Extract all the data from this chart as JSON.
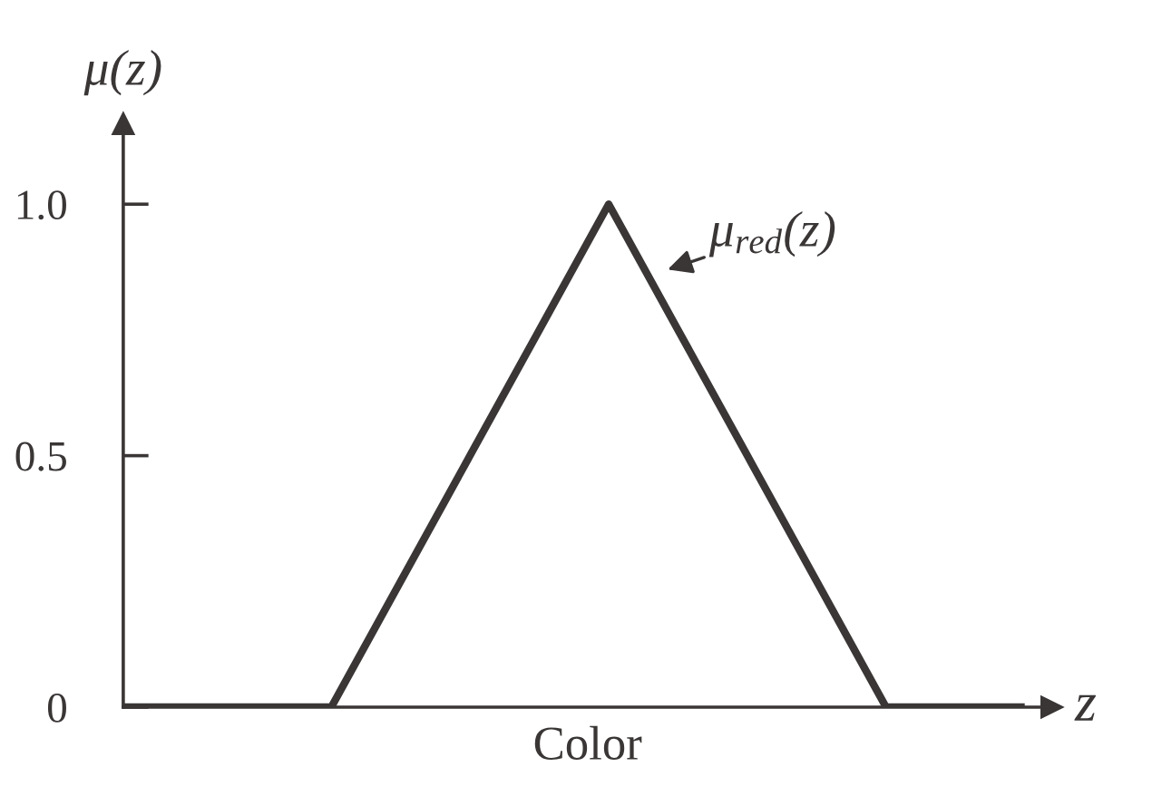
{
  "chart_data": {
    "type": "line",
    "ylabel": "μ(z)",
    "xlabel": "Color",
    "categories": [
      null,
      null,
      null,
      null,
      null,
      null,
      null,
      null,
      null,
      null,
      null,
      null,
      null,
      null
    ],
    "series": [
      {
        "color": "#3a3636",
        "values": [
          0,
          0,
          0,
          0,
          0.25,
          0.5,
          0.75,
          1,
          0.75,
          0.5,
          0.25,
          0,
          0,
          0
        ]
      }
    ],
    "ylim": [
      0,
      1.16
    ],
    "yticks": [
      0,
      0.5,
      {
        "value": 1,
        "label": "1.0"
      }
    ],
    "annotations": [
      "z",
      "μ$_{red}$(z)"
    ],
    "grid": false,
    "legend": false,
    "marker": "none",
    "line_style": "solid"
  }
}
